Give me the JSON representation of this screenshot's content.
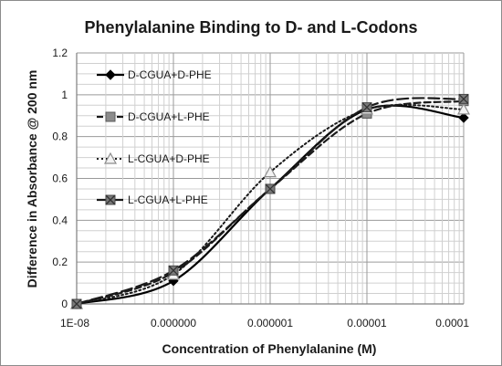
{
  "chart_data": {
    "type": "line",
    "title": "Phenylalanine Binding to D- and L-Codons",
    "xlabel": "Concentration of Phenylalanine (M)",
    "ylabel": "Difference in Absorbance @ 200 nm",
    "x_scale": "log",
    "x_ticks": [
      1e-08,
      1e-07,
      1e-06,
      1e-05,
      0.0001
    ],
    "x_tick_labels": [
      "1E-08",
      "0.000000",
      "0.000001",
      "0.00001",
      "0.0001"
    ],
    "ylim": [
      0,
      1.2
    ],
    "y_ticks": [
      0,
      0.2,
      0.4,
      0.6,
      0.8,
      1,
      1.2
    ],
    "y_tick_labels": [
      "0",
      "0.2",
      "0.4",
      "0.6",
      "0.8",
      "1",
      "1.2"
    ],
    "grid": true,
    "legend_position": "left",
    "x": [
      1e-08,
      1e-07,
      1e-06,
      1e-05,
      0.0001
    ],
    "series": [
      {
        "name": "D-CGUA+D-PHE",
        "values": [
          0,
          0.11,
          0.55,
          0.93,
          0.89
        ],
        "marker": "diamond",
        "dash": "solid",
        "color": "#000000"
      },
      {
        "name": "D-CGUA+L-PHE",
        "values": [
          0,
          0.15,
          0.55,
          0.91,
          0.97
        ],
        "marker": "square",
        "dash": "dashed",
        "color": "#1a1a1a"
      },
      {
        "name": "L-CGUA+D-PHE",
        "values": [
          0,
          0.14,
          0.63,
          0.93,
          0.93
        ],
        "marker": "triangle",
        "dash": "dotted",
        "color": "#1a1a1a"
      },
      {
        "name": "L-CGUA+L-PHE",
        "values": [
          0,
          0.16,
          0.55,
          0.94,
          0.98
        ],
        "marker": "star",
        "dash": "longdash",
        "color": "#1a1a1a"
      }
    ]
  }
}
